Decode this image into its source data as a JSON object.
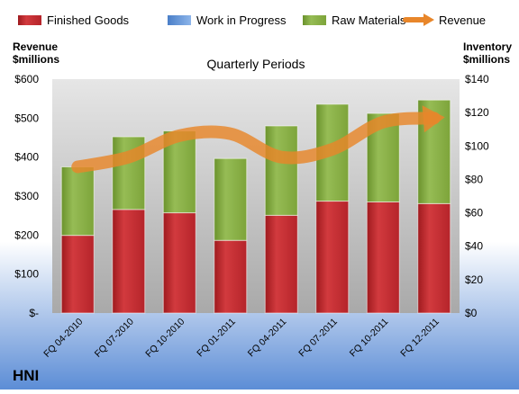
{
  "chart_data": {
    "type": "bar",
    "title": "Quarterly Periods",
    "company": "HNI",
    "left_axis_label": [
      "Revenue",
      "$millions"
    ],
    "right_axis_label": [
      "Inventory",
      "$millions"
    ],
    "categories": [
      "FQ 04-2010",
      "FQ 07-2010",
      "FQ 10-2010",
      "FQ 01-2011",
      "FQ 04-2011",
      "FQ 07-2011",
      "FQ 10-2011",
      "FQ 12-2011"
    ],
    "left_ylim": [
      0,
      600
    ],
    "left_ticks": [
      "$-",
      "$100",
      "$200",
      "$300",
      "$400",
      "$500",
      "$600"
    ],
    "right_ylim": [
      0,
      140
    ],
    "right_ticks": [
      "$0",
      "$20",
      "$40",
      "$60",
      "$80",
      "$100",
      "$120",
      "$140"
    ],
    "legend": [
      "Finished Goods",
      "Work in Progress",
      "Raw Materials",
      "Revenue"
    ],
    "legend_position": "top",
    "grid": false,
    "series": [
      {
        "name": "Finished Goods",
        "axis": "right",
        "stack": true,
        "color": "#C0282D",
        "values": [
          46.5,
          62,
          60,
          43.5,
          58.5,
          67,
          66.5,
          65.5
        ]
      },
      {
        "name": "Work in Progress",
        "axis": "right",
        "stack": true,
        "color": "#5B8FD6",
        "values": [
          0,
          0,
          0,
          0,
          0,
          0,
          0,
          0
        ]
      },
      {
        "name": "Raw Materials",
        "axis": "right",
        "stack": true,
        "color": "#7DA43A",
        "values": [
          41,
          43.5,
          49,
          49,
          53.5,
          58,
          53,
          62
        ]
      },
      {
        "name": "Revenue",
        "axis": "left",
        "type": "line",
        "color": "#E8862A",
        "values": [
          375,
          400,
          455,
          460,
          400,
          420,
          490,
          500
        ]
      }
    ]
  }
}
